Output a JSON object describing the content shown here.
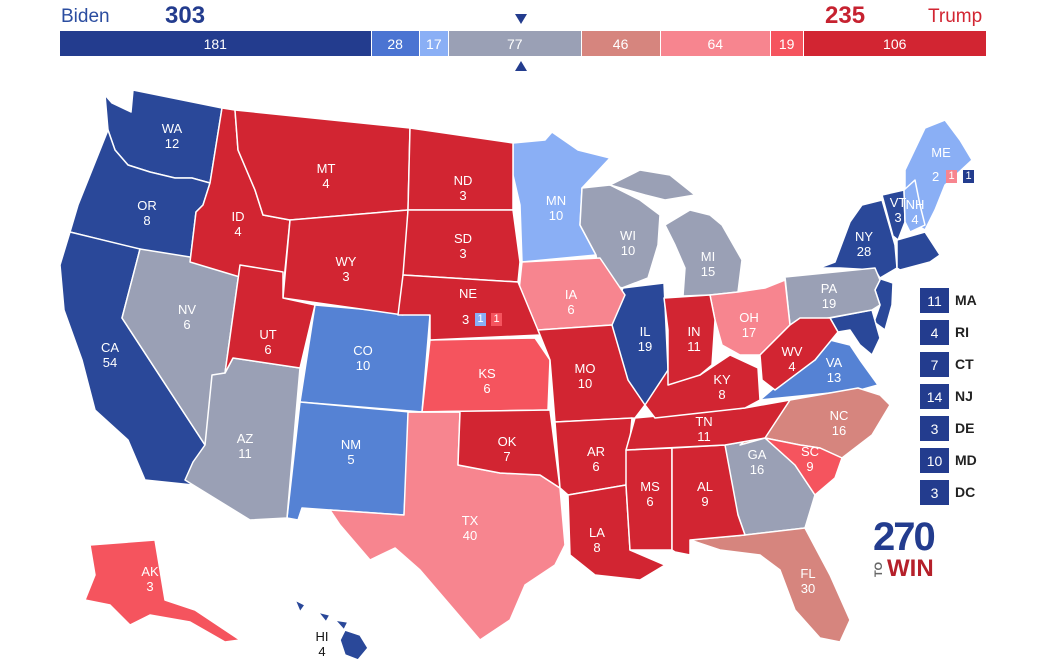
{
  "header": {
    "left_candidate": "Biden",
    "left_total": "303",
    "right_candidate": "Trump",
    "right_total": "235",
    "segments": [
      {
        "label": "181",
        "value": 181,
        "color": "#233c8e"
      },
      {
        "label": "28",
        "value": 28,
        "color": "#4b74d2"
      },
      {
        "label": "17",
        "value": 17,
        "color": "#8aaff5"
      },
      {
        "label": "77",
        "value": 77,
        "color": "#9aa0b5"
      },
      {
        "label": "46",
        "value": 46,
        "color": "#d6857e"
      },
      {
        "label": "64",
        "value": 64,
        "color": "#f7858f"
      },
      {
        "label": "19",
        "value": 19,
        "color": "#f5545e"
      },
      {
        "label": "106",
        "value": 106,
        "color": "#d22532"
      }
    ]
  },
  "colors": {
    "safe_d": "#2a4899",
    "likely_d": "#5582d4",
    "lean_d": "#8aaff5",
    "tossup": "#9aa0b5",
    "tilt_r": "#d6857e",
    "lean_r": "#f7858f",
    "likely_r": "#f5545e",
    "safe_r": "#d22532"
  },
  "states": {
    "WA": {
      "abbr": "WA",
      "ev": "12"
    },
    "OR": {
      "abbr": "OR",
      "ev": "8"
    },
    "CA": {
      "abbr": "CA",
      "ev": "54"
    },
    "NV": {
      "abbr": "NV",
      "ev": "6"
    },
    "ID": {
      "abbr": "ID",
      "ev": "4"
    },
    "MT": {
      "abbr": "MT",
      "ev": "4"
    },
    "WY": {
      "abbr": "WY",
      "ev": "3"
    },
    "UT": {
      "abbr": "UT",
      "ev": "6"
    },
    "AZ": {
      "abbr": "AZ",
      "ev": "11"
    },
    "CO": {
      "abbr": "CO",
      "ev": "10"
    },
    "NM": {
      "abbr": "NM",
      "ev": "5"
    },
    "ND": {
      "abbr": "ND",
      "ev": "3"
    },
    "SD": {
      "abbr": "SD",
      "ev": "3"
    },
    "NE": {
      "abbr": "NE",
      "ev": "3"
    },
    "KS": {
      "abbr": "KS",
      "ev": "6"
    },
    "OK": {
      "abbr": "OK",
      "ev": "7"
    },
    "TX": {
      "abbr": "TX",
      "ev": "40"
    },
    "MN": {
      "abbr": "MN",
      "ev": "10"
    },
    "IA": {
      "abbr": "IA",
      "ev": "6"
    },
    "MO": {
      "abbr": "MO",
      "ev": "10"
    },
    "AR": {
      "abbr": "AR",
      "ev": "6"
    },
    "LA": {
      "abbr": "LA",
      "ev": "8"
    },
    "WI": {
      "abbr": "WI",
      "ev": "10"
    },
    "IL": {
      "abbr": "IL",
      "ev": "19"
    },
    "MI": {
      "abbr": "MI",
      "ev": "15"
    },
    "IN": {
      "abbr": "IN",
      "ev": "11"
    },
    "OH": {
      "abbr": "OH",
      "ev": "17"
    },
    "KY": {
      "abbr": "KY",
      "ev": "8"
    },
    "TN": {
      "abbr": "TN",
      "ev": "11"
    },
    "MS": {
      "abbr": "MS",
      "ev": "6"
    },
    "AL": {
      "abbr": "AL",
      "ev": "9"
    },
    "GA": {
      "abbr": "GA",
      "ev": "16"
    },
    "FL": {
      "abbr": "FL",
      "ev": "30"
    },
    "SC": {
      "abbr": "SC",
      "ev": "9"
    },
    "NC": {
      "abbr": "NC",
      "ev": "16"
    },
    "VA": {
      "abbr": "VA",
      "ev": "13"
    },
    "WV": {
      "abbr": "WV",
      "ev": "4"
    },
    "PA": {
      "abbr": "PA",
      "ev": "19"
    },
    "NY": {
      "abbr": "NY",
      "ev": "28"
    },
    "VT": {
      "abbr": "VT",
      "ev": "3"
    },
    "NH": {
      "abbr": "NH",
      "ev": "4"
    },
    "ME": {
      "abbr": "ME",
      "ev": "2"
    },
    "AK": {
      "abbr": "AK",
      "ev": "3"
    },
    "HI": {
      "abbr": "HI",
      "ev": "4"
    }
  },
  "splits": {
    "me_d1": "1",
    "me_d2": "1",
    "ne_d1": "1",
    "ne_d2": "1"
  },
  "small_states": [
    {
      "ev": "11",
      "name": "MA"
    },
    {
      "ev": "4",
      "name": "RI"
    },
    {
      "ev": "7",
      "name": "CT"
    },
    {
      "ev": "14",
      "name": "NJ"
    },
    {
      "ev": "3",
      "name": "DE"
    },
    {
      "ev": "10",
      "name": "MD"
    },
    {
      "ev": "3",
      "name": "DC"
    }
  ],
  "logo": {
    "number": "270",
    "to": "TO",
    "win": "WIN"
  }
}
